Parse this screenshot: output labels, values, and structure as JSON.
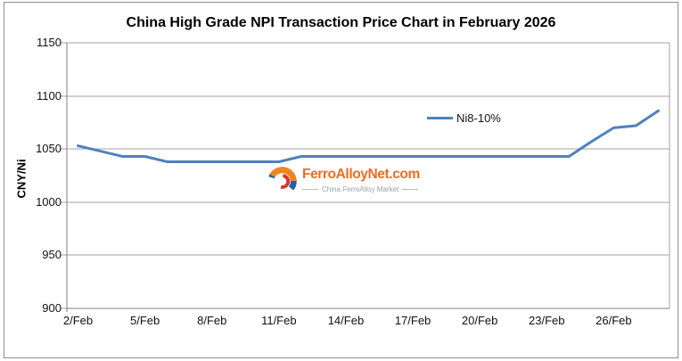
{
  "title": "China High Grade NPI Transaction Price Chart in February 2026",
  "watermark": {
    "brand": "FerroAlloyNet.com",
    "tagline": "China FerroAlloy Market",
    "brand_color": "#ED6C1F",
    "logo_colors": {
      "orange": "#F0861F",
      "blue": "#2161AC",
      "red": "#D5372B"
    }
  },
  "chart_data": {
    "type": "line",
    "title": "China High Grade NPI Transaction Price Chart in February 2026",
    "xlabel": "",
    "ylabel": "CNY/Ni",
    "ylim": [
      900,
      1150
    ],
    "ytick_step": 50,
    "ytick_labels": [
      "900",
      "950",
      "1000",
      "1050",
      "1100",
      "1150"
    ],
    "xtick_labels": [
      "2/Feb",
      "5/Feb",
      "8/Feb",
      "11/Feb",
      "14/Feb",
      "17/Feb",
      "20/Feb",
      "23/Feb",
      "26/Feb"
    ],
    "grid": "horizontal",
    "gridline_color": "#A3A3A3",
    "legend_position": "floating-center-right",
    "series": [
      {
        "name": "Ni8-10%",
        "color": "#4F81BD",
        "x": [
          "2/Feb",
          "3/Feb",
          "4/Feb",
          "5/Feb",
          "6/Feb",
          "7/Feb",
          "8/Feb",
          "9/Feb",
          "10/Feb",
          "11/Feb",
          "12/Feb",
          "13/Feb",
          "14/Feb",
          "15/Feb",
          "16/Feb",
          "17/Feb",
          "18/Feb",
          "19/Feb",
          "20/Feb",
          "21/Feb",
          "22/Feb",
          "23/Feb",
          "24/Feb",
          "25/Feb",
          "26/Feb",
          "27/Feb",
          "28/Feb"
        ],
        "values": [
          1053,
          1048,
          1043,
          1043,
          1038,
          1038,
          1038,
          1038,
          1038,
          1038,
          1043,
          1043,
          1043,
          1043,
          1043,
          1043,
          1043,
          1043,
          1043,
          1043,
          1043,
          1043,
          1043,
          1057,
          1070,
          1072,
          1086
        ]
      }
    ]
  }
}
